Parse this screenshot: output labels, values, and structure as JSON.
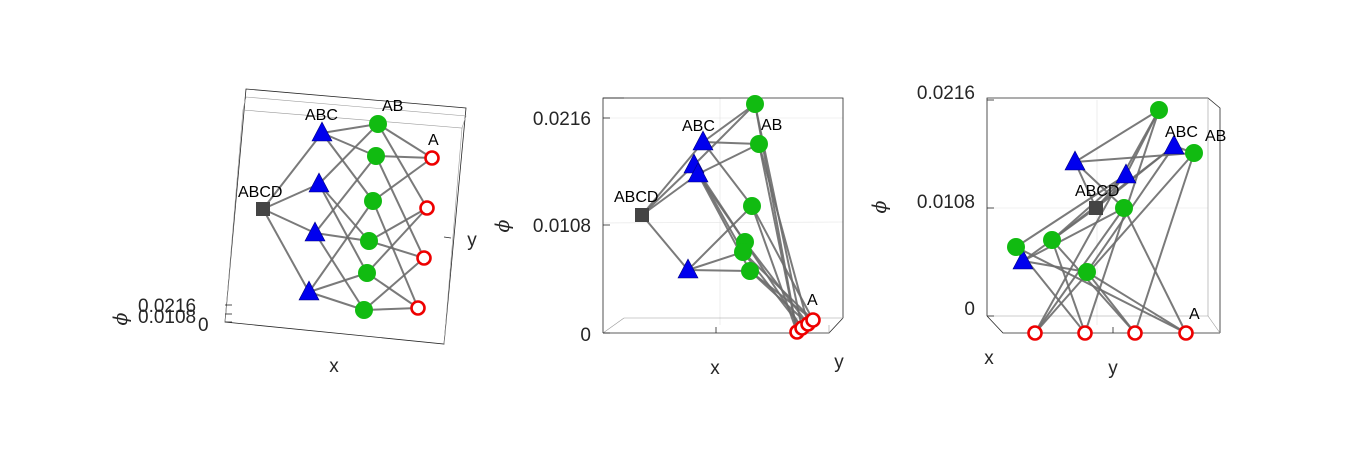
{
  "axes_labels": {
    "x": "x",
    "y": "y",
    "phi": "ϕ"
  },
  "ticks": {
    "zero": "0",
    "mid": "0.0108",
    "top": "0.0216"
  },
  "node_labels": {
    "abcd": "ABCD",
    "abc": "ABC",
    "ab": "AB",
    "a": "A"
  },
  "colors": {
    "square_node": "#444444",
    "triangle_node": "#0000ee",
    "circle_node": "#11bb11",
    "ring_node": "#ee0000",
    "edge": "#6b6b6b"
  },
  "panels": [
    {
      "name": "panel-1",
      "nodes": [
        {
          "kind": "square"
        },
        {
          "kind": "tri"
        },
        {
          "kind": "tri"
        },
        {
          "kind": "tri"
        },
        {
          "kind": "tri"
        },
        {
          "kind": "dot"
        },
        {
          "kind": "dot"
        },
        {
          "kind": "dot"
        },
        {
          "kind": "dot"
        },
        {
          "kind": "dot"
        },
        {
          "kind": "dot"
        },
        {
          "kind": "ring"
        },
        {
          "kind": "ring"
        },
        {
          "kind": "ring"
        },
        {
          "kind": "ring"
        }
      ],
      "edges": [
        [
          0,
          1
        ],
        [
          0,
          2
        ],
        [
          0,
          3
        ],
        [
          0,
          4
        ],
        [
          1,
          5
        ],
        [
          1,
          6
        ],
        [
          1,
          7
        ],
        [
          2,
          5
        ],
        [
          2,
          8
        ],
        [
          2,
          9
        ],
        [
          3,
          6
        ],
        [
          3,
          8
        ],
        [
          3,
          10
        ],
        [
          4,
          7
        ],
        [
          4,
          9
        ],
        [
          4,
          10
        ],
        [
          5,
          11
        ],
        [
          5,
          12
        ],
        [
          6,
          11
        ],
        [
          6,
          13
        ],
        [
          7,
          11
        ],
        [
          7,
          14
        ],
        [
          8,
          12
        ],
        [
          8,
          13
        ],
        [
          9,
          12
        ],
        [
          9,
          14
        ],
        [
          10,
          13
        ],
        [
          10,
          14
        ]
      ]
    },
    {
      "name": "panel-2",
      "nodes": [
        {
          "kind": "square"
        },
        {
          "kind": "tri"
        },
        {
          "kind": "tri"
        },
        {
          "kind": "tri"
        },
        {
          "kind": "tri"
        },
        {
          "kind": "dot"
        },
        {
          "kind": "dot"
        },
        {
          "kind": "dot"
        },
        {
          "kind": "dot"
        },
        {
          "kind": "dot"
        },
        {
          "kind": "dot"
        },
        {
          "kind": "ring"
        },
        {
          "kind": "ring"
        },
        {
          "kind": "ring"
        },
        {
          "kind": "ring"
        }
      ],
      "edges": [
        [
          0,
          1
        ],
        [
          0,
          2
        ],
        [
          0,
          3
        ],
        [
          0,
          4
        ],
        [
          1,
          5
        ],
        [
          1,
          6
        ],
        [
          1,
          7
        ],
        [
          2,
          5
        ],
        [
          2,
          8
        ],
        [
          2,
          9
        ],
        [
          3,
          6
        ],
        [
          3,
          8
        ],
        [
          3,
          10
        ],
        [
          4,
          7
        ],
        [
          4,
          9
        ],
        [
          4,
          10
        ],
        [
          5,
          11
        ],
        [
          5,
          12
        ],
        [
          6,
          11
        ],
        [
          6,
          13
        ],
        [
          7,
          11
        ],
        [
          7,
          14
        ],
        [
          8,
          12
        ],
        [
          8,
          13
        ],
        [
          9,
          12
        ],
        [
          9,
          14
        ],
        [
          10,
          13
        ],
        [
          10,
          14
        ]
      ]
    },
    {
      "name": "panel-3",
      "nodes": [
        {
          "kind": "square"
        },
        {
          "kind": "tri"
        },
        {
          "kind": "tri"
        },
        {
          "kind": "tri"
        },
        {
          "kind": "tri"
        },
        {
          "kind": "dot"
        },
        {
          "kind": "dot"
        },
        {
          "kind": "dot"
        },
        {
          "kind": "dot"
        },
        {
          "kind": "dot"
        },
        {
          "kind": "dot"
        },
        {
          "kind": "ring"
        },
        {
          "kind": "ring"
        },
        {
          "kind": "ring"
        },
        {
          "kind": "ring"
        }
      ],
      "edges": [
        [
          0,
          1
        ],
        [
          0,
          2
        ],
        [
          0,
          3
        ],
        [
          0,
          4
        ],
        [
          1,
          5
        ],
        [
          1,
          6
        ],
        [
          1,
          7
        ],
        [
          2,
          5
        ],
        [
          2,
          8
        ],
        [
          2,
          9
        ],
        [
          3,
          6
        ],
        [
          3,
          8
        ],
        [
          3,
          10
        ],
        [
          4,
          7
        ],
        [
          4,
          9
        ],
        [
          4,
          10
        ],
        [
          5,
          11
        ],
        [
          5,
          12
        ],
        [
          6,
          11
        ],
        [
          6,
          13
        ],
        [
          7,
          11
        ],
        [
          7,
          14
        ],
        [
          8,
          12
        ],
        [
          8,
          13
        ],
        [
          9,
          12
        ],
        [
          9,
          14
        ],
        [
          10,
          13
        ],
        [
          10,
          14
        ]
      ]
    }
  ]
}
